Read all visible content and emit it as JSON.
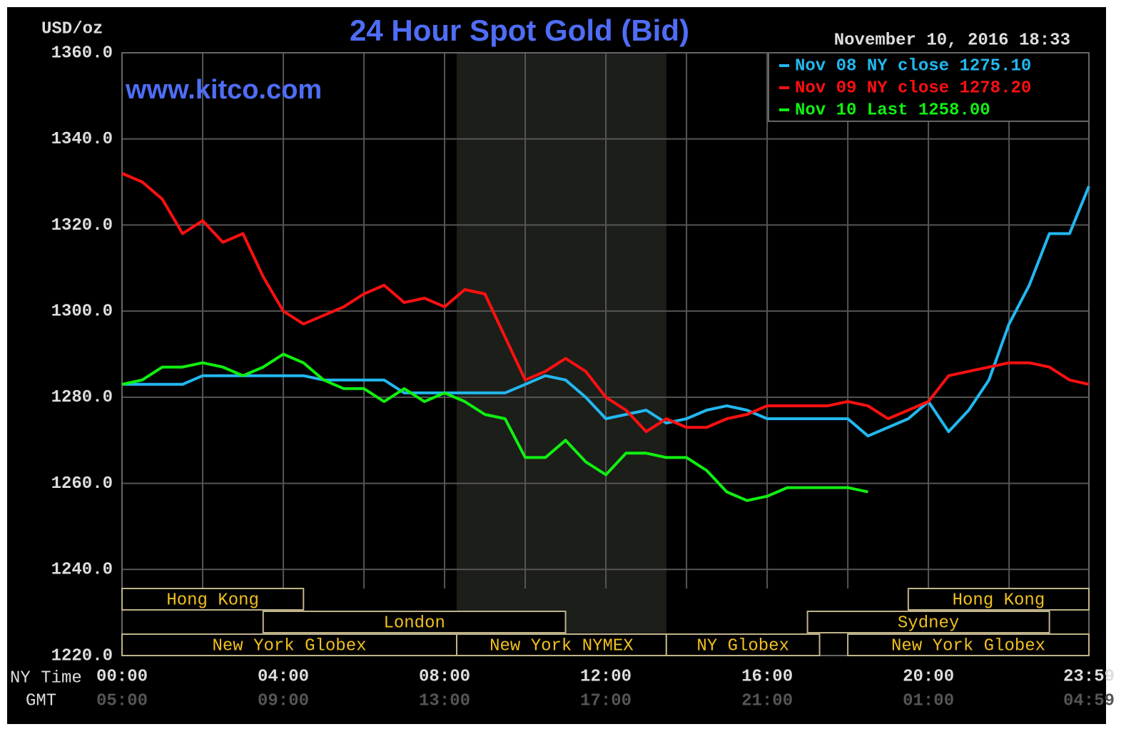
{
  "chart_data": {
    "type": "line",
    "title": "24 Hour Spot Gold (Bid)",
    "subtitle": "November 10, 2016 18:33",
    "y_label": "USD/oz",
    "watermark": "www.kitco.com",
    "x_label": "NY Time",
    "x2_label": "GMT",
    "x": [
      0,
      0.5,
      1,
      1.5,
      2,
      2.5,
      3,
      3.5,
      4,
      4.5,
      5,
      5.5,
      6,
      6.5,
      7,
      7.5,
      8,
      8.5,
      9,
      9.5,
      10,
      10.5,
      11,
      11.5,
      12,
      12.5,
      13,
      13.5,
      14,
      14.5,
      15,
      15.5,
      16,
      16.5,
      17,
      17.5,
      18,
      18.5,
      19,
      19.5,
      20,
      20.5,
      21,
      21.5,
      22,
      22.5,
      23,
      23.5,
      23.98
    ],
    "series": [
      {
        "name": "Nov 08 NY close 1275.10",
        "color": "#22b8f0",
        "values": [
          1283,
          1283,
          1283,
          1283,
          1285,
          1285,
          1285,
          1285,
          1285,
          1285,
          1284,
          1284,
          1284,
          1284,
          1281,
          1281,
          1281,
          1281,
          1281,
          1281,
          1283,
          1285,
          1284,
          1280,
          1275,
          1276,
          1277,
          1274,
          1275,
          1277,
          1278,
          1277,
          1275,
          1275,
          1275,
          1275,
          1275,
          1271,
          1273,
          1275,
          1279,
          1272,
          1277,
          1284,
          1297,
          1306,
          1318,
          1318,
          1329
        ]
      },
      {
        "name": "Nov 09 NY close 1278.20",
        "color": "#ff1010",
        "values": [
          1332,
          1330,
          1326,
          1318,
          1321,
          1316,
          1318,
          1308,
          1300,
          1297,
          1299,
          1301,
          1304,
          1306,
          1302,
          1303,
          1301,
          1305,
          1304,
          1294,
          1284,
          1286,
          1289,
          1286,
          1280,
          1277,
          1272,
          1275,
          1273,
          1273,
          1275,
          1276,
          1278,
          1278,
          1278,
          1278,
          1279,
          1278,
          1275,
          1277,
          1279,
          1285,
          1286,
          1287,
          1288,
          1288,
          1287,
          1284,
          1283
        ]
      },
      {
        "name": "Nov 10 Last 1258.00",
        "color": "#10f010",
        "values": [
          1283,
          1284,
          1287,
          1287,
          1288,
          1287,
          1285,
          1287,
          1290,
          1288,
          1284,
          1282,
          1282,
          1279,
          1282,
          1279,
          1281,
          1279,
          1276,
          1275,
          1266,
          1266,
          1270,
          1265,
          1262,
          1267,
          1267,
          1266,
          1266,
          1263,
          1258,
          1256,
          1257,
          1259,
          1259,
          1259,
          1259,
          1258,
          null,
          null,
          null,
          null,
          null,
          null,
          null,
          null,
          null,
          null,
          null
        ]
      }
    ],
    "xlim": [
      0,
      23.98
    ],
    "xticks": [
      {
        "value": 0,
        "label": "00:00"
      },
      {
        "value": 4,
        "label": "04:00"
      },
      {
        "value": 8,
        "label": "08:00"
      },
      {
        "value": 12,
        "label": "12:00"
      },
      {
        "value": 16,
        "label": "16:00"
      },
      {
        "value": 20,
        "label": "20:00"
      },
      {
        "value": 23.98,
        "label": "23:59"
      }
    ],
    "x2ticks": [
      {
        "value": 0,
        "label": "05:00"
      },
      {
        "value": 4,
        "label": "09:00"
      },
      {
        "value": 8,
        "label": "13:00"
      },
      {
        "value": 12,
        "label": "17:00"
      },
      {
        "value": 16,
        "label": "21:00"
      },
      {
        "value": 20,
        "label": "01:00"
      },
      {
        "value": 23.98,
        "label": "04:59"
      }
    ],
    "xgrid": [
      2,
      4,
      6,
      8,
      10,
      12,
      14,
      16,
      18,
      20,
      22
    ],
    "ylim": [
      1220,
      1360
    ],
    "yticks": [
      {
        "value": 1220,
        "label": "1220.0"
      },
      {
        "value": 1240,
        "label": "1240.0"
      },
      {
        "value": 1260,
        "label": "1260.0"
      },
      {
        "value": 1280,
        "label": "1280.0"
      },
      {
        "value": 1300,
        "label": "1300.0"
      },
      {
        "value": 1320,
        "label": "1320.0"
      },
      {
        "value": 1340,
        "label": "1340.0"
      },
      {
        "value": 1360,
        "label": "1360.0"
      }
    ],
    "grid": true,
    "highlight": [
      8.3,
      13.5
    ],
    "sessions": [
      {
        "name": "Hong Kong",
        "row": 0,
        "start": 0,
        "end": 4.5
      },
      {
        "name": "Hong Kong",
        "row": 0,
        "start": 19.5,
        "end": 23.98
      },
      {
        "name": "London",
        "row": 1,
        "start": 3.5,
        "end": 11
      },
      {
        "name": "Sydney",
        "row": 1,
        "start": 17,
        "end": 23
      },
      {
        "name": "New York Globex",
        "row": 2,
        "start": 0,
        "end": 8.3
      },
      {
        "name": "New York NYMEX",
        "row": 2,
        "start": 8.3,
        "end": 13.5
      },
      {
        "name": "NY Globex",
        "row": 2,
        "start": 13.5,
        "end": 17.3
      },
      {
        "name": "New York Globex",
        "row": 2,
        "start": 18,
        "end": 23.98
      }
    ],
    "legend": "upper right"
  }
}
